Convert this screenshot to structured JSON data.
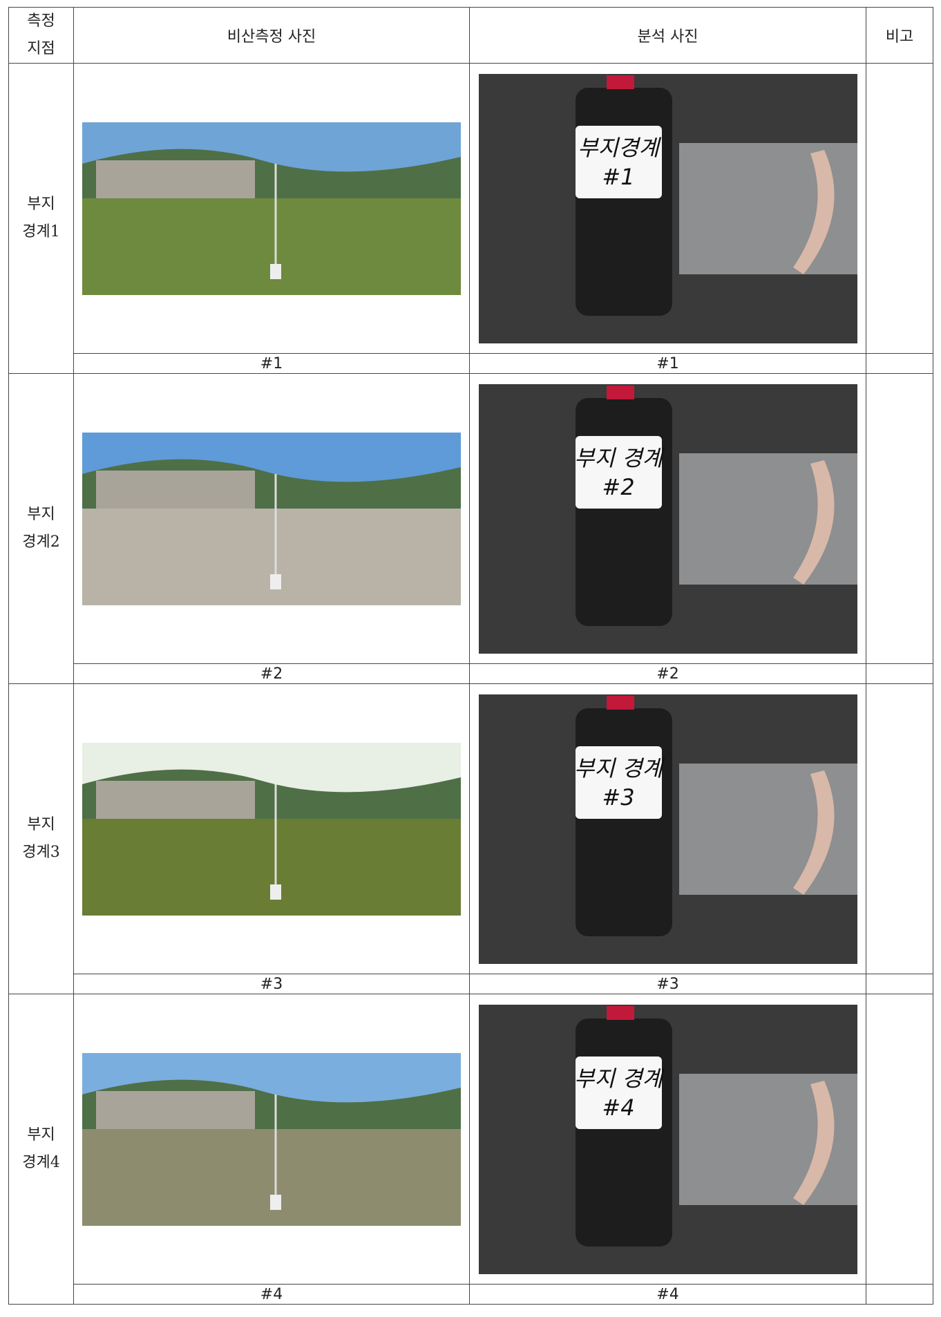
{
  "table": {
    "header": [
      [
        "측정",
        "지점"
      ],
      "비산측정 사진",
      "분석 사진",
      "비고"
    ],
    "rows": [
      {
        "point": [
          "부지",
          "경계1"
        ],
        "field_caption": "#1",
        "analysis_caption": "#1",
        "bottle_label": [
          "부지경계",
          "#1"
        ]
      },
      {
        "point": [
          "부지",
          "경계2"
        ],
        "field_caption": "#2",
        "analysis_caption": "#2",
        "bottle_label": [
          "부지 경계",
          "#2"
        ]
      },
      {
        "point": [
          "부지",
          "경계3"
        ],
        "field_caption": "#3",
        "analysis_caption": "#3",
        "bottle_label": [
          "부지 경계",
          "#3"
        ]
      },
      {
        "point": [
          "부지",
          "경계4"
        ],
        "field_caption": "#4",
        "analysis_caption": "#4",
        "bottle_label": [
          "부지 경계",
          "#4"
        ]
      }
    ]
  }
}
